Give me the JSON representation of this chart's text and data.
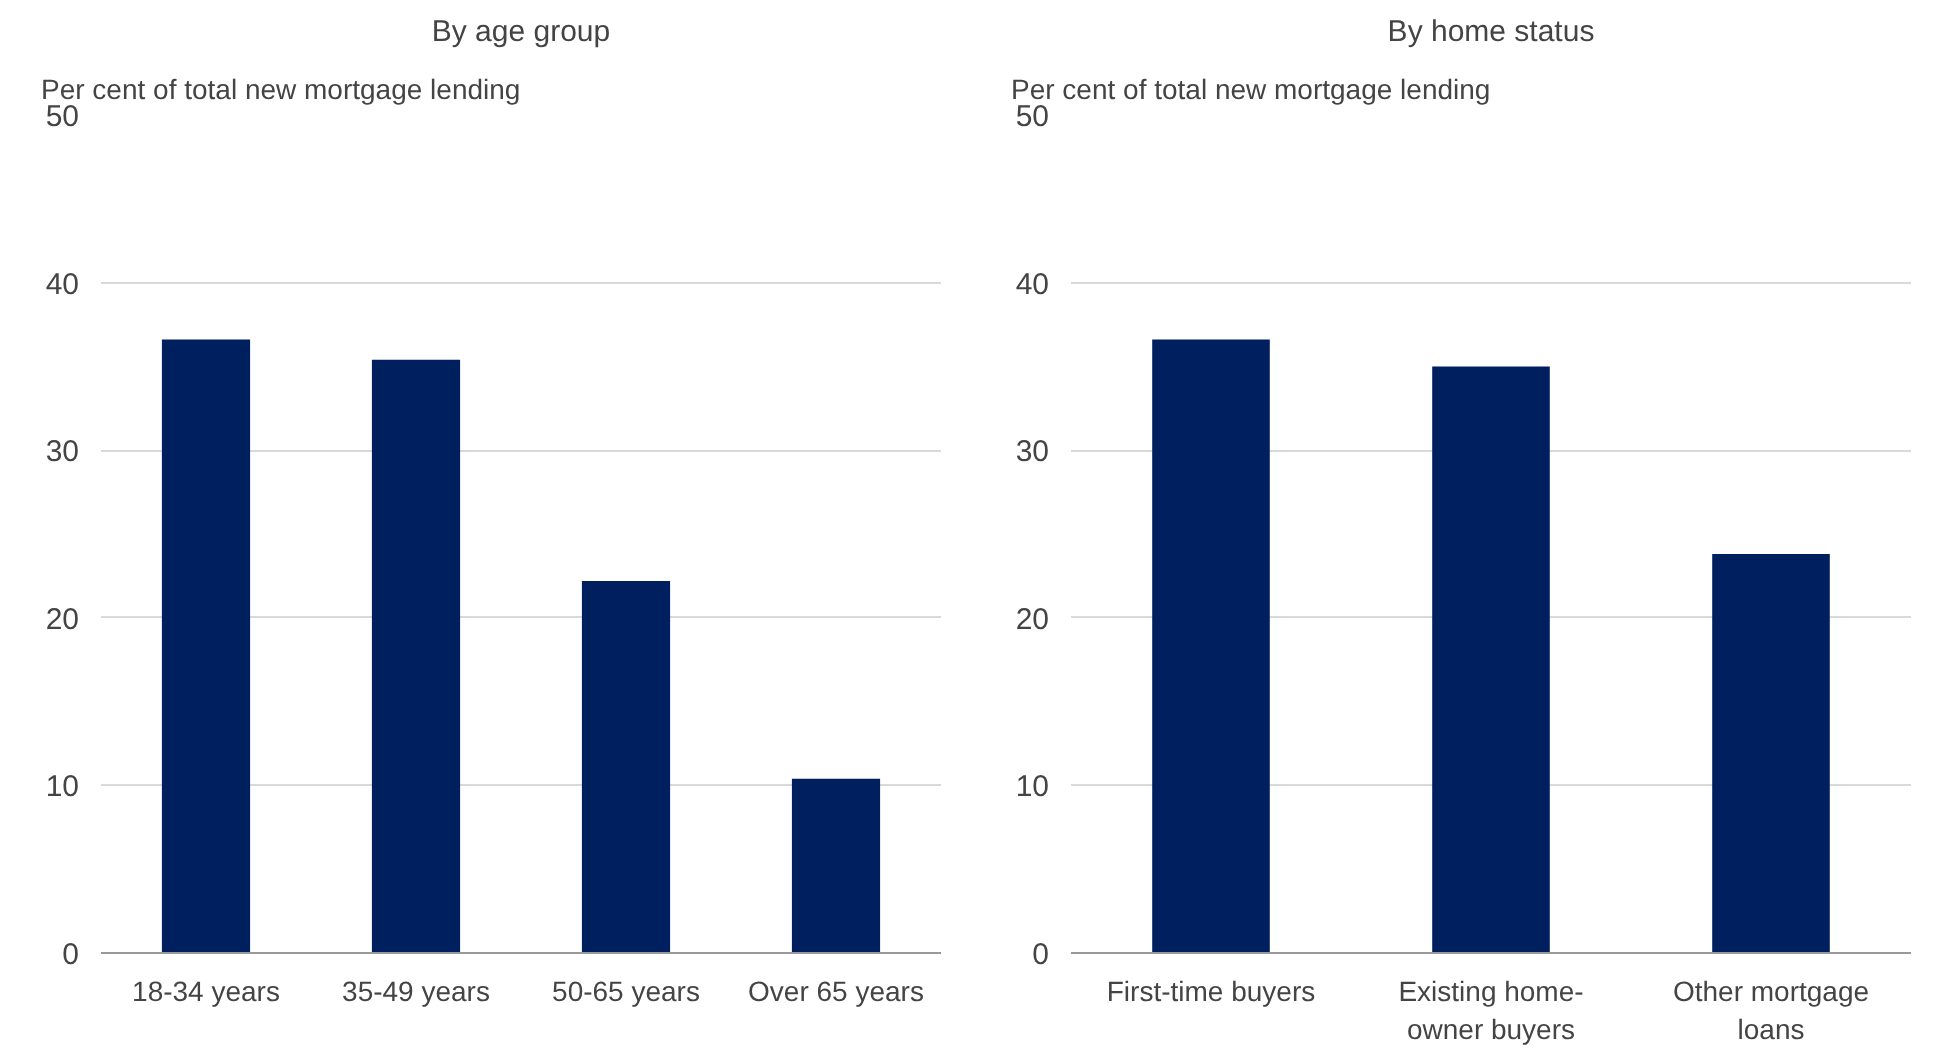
{
  "chart_data": [
    {
      "type": "bar",
      "title": "By age group",
      "ylabel": "Per cent of total new mortgage lending",
      "categories": [
        "18-34 years",
        "35-49 years",
        "50-65 years",
        "Over 65 years"
      ],
      "values": [
        36.6,
        35.4,
        22.2,
        10.4
      ],
      "color": "#001f5f",
      "ylim": [
        0,
        50
      ],
      "yticks": [
        0,
        10,
        20,
        30,
        40,
        50
      ],
      "grid": "y"
    },
    {
      "type": "bar",
      "title": "By home status",
      "ylabel": "Per cent of total new mortgage lending",
      "categories": [
        "First-time buyers",
        "Existing home-owner buyers",
        "Other mortgage loans"
      ],
      "values": [
        36.6,
        35.0,
        23.8
      ],
      "color": "#001f5f",
      "ylim": [
        0,
        50
      ],
      "yticks": [
        0,
        10,
        20,
        30,
        40,
        50
      ],
      "grid": "y"
    }
  ]
}
